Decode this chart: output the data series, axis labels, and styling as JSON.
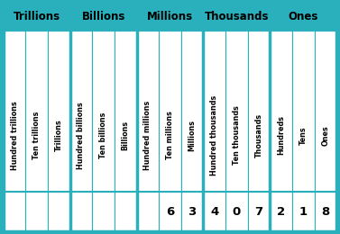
{
  "header_groups": [
    "Trillions",
    "Billions",
    "Millions",
    "Thousands",
    "Ones"
  ],
  "header_spans": [
    3,
    3,
    3,
    3,
    3
  ],
  "col_labels": [
    "Hundred trillions",
    "Ten trillions",
    "Trillions",
    "Hundred billions",
    "Ten billions",
    "Billions",
    "Hundred millions",
    "Ten millions",
    "Millions",
    "Hundred thousands",
    "Ten thousands",
    "Thousands",
    "Hundreds",
    "Tens",
    "Ones"
  ],
  "values": [
    "",
    "",
    "",
    "",
    "",
    "",
    "",
    "6",
    "3",
    "4",
    "0",
    "7",
    "2",
    "1",
    "8"
  ],
  "header_bg": "#2ab0bc",
  "header_text": "#000000",
  "cell_bg": "#ffffff",
  "border_color": "#2ab0bc",
  "value_text": "#000000",
  "n_cols": 15,
  "group_borders": [
    3,
    6,
    9,
    12
  ],
  "figsize": [
    3.77,
    2.6
  ],
  "dpi": 100,
  "header_fontsize": 8.5,
  "label_fontsize": 5.8,
  "value_fontsize": 9.5
}
